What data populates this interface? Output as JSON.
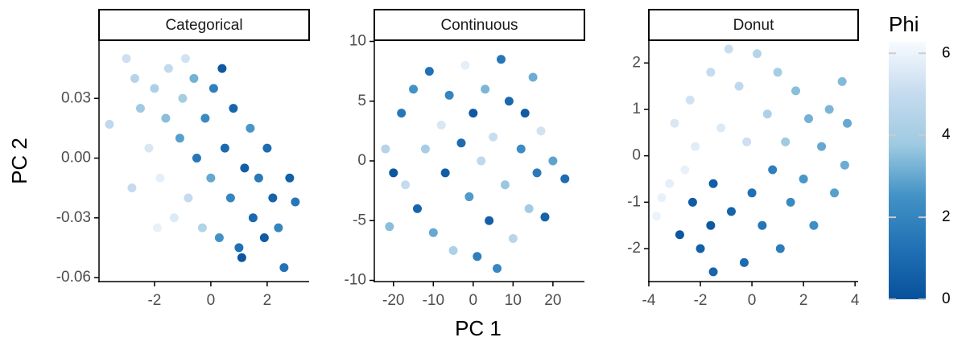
{
  "xlabel": "PC 1",
  "ylabel": "PC 2",
  "colorbar": {
    "title": "Phi",
    "lim": [
      0,
      6.28
    ],
    "ticks": [
      0,
      2,
      4,
      6
    ],
    "colors": [
      "#08519c",
      "#2171b5",
      "#4292c6",
      "#9ecae1",
      "#c6dbef",
      "#f7fbff"
    ]
  },
  "chart_data": [
    {
      "type": "scatter",
      "title": "Categorical",
      "x": [
        -3.6,
        -3.0,
        -2.7,
        -2.5,
        -2.2,
        -2.0,
        -1.8,
        -1.6,
        -1.5,
        -1.3,
        -1.1,
        -1.0,
        -0.8,
        -0.6,
        -0.5,
        -0.3,
        -0.2,
        0.0,
        0.1,
        0.3,
        0.5,
        0.7,
        0.8,
        1.0,
        1.2,
        1.4,
        1.5,
        1.7,
        1.9,
        2.0,
        2.2,
        2.4,
        2.6,
        2.8,
        3.0,
        -2.8,
        -0.9,
        0.4,
        1.1,
        -1.9
      ],
      "y": [
        0.017,
        0.05,
        0.04,
        0.025,
        0.005,
        0.035,
        -0.01,
        0.02,
        0.045,
        -0.03,
        0.01,
        0.03,
        -0.02,
        0.04,
        0.0,
        -0.035,
        0.02,
        -0.01,
        0.035,
        -0.04,
        0.005,
        -0.02,
        0.025,
        -0.045,
        -0.005,
        0.015,
        -0.03,
        -0.01,
        -0.04,
        0.005,
        -0.02,
        -0.035,
        -0.055,
        -0.01,
        -0.022,
        -0.015,
        0.05,
        0.045,
        -0.05,
        -0.035
      ],
      "phi": [
        4.8,
        5.2,
        4.5,
        3.8,
        5.5,
        4.2,
        5.8,
        3.5,
        4.9,
        5.6,
        2.8,
        4.0,
        5.0,
        3.2,
        1.5,
        4.4,
        2.2,
        3.0,
        1.8,
        2.5,
        1.0,
        2.0,
        0.8,
        1.2,
        0.5,
        2.6,
        0.9,
        1.6,
        0.4,
        1.1,
        0.7,
        2.0,
        1.3,
        0.6,
        1.5,
        5.0,
        5.3,
        0.3,
        0.2,
        5.9
      ],
      "xlim": [
        -3.97,
        3.49
      ],
      "ylim": [
        -0.062,
        0.0592
      ],
      "xticks": [
        -2,
        0,
        2
      ],
      "yticks": [
        -0.06,
        -0.03,
        {
          "value": 0,
          "label": "0.00"
        },
        0.03
      ]
    },
    {
      "type": "scatter",
      "title": "Continuous",
      "x": [
        -22,
        -21,
        -18,
        -17,
        -15,
        -14,
        -12,
        -11,
        -10,
        -8,
        -7,
        -6,
        -5,
        -3,
        -2,
        -1,
        0,
        1,
        2,
        3,
        4,
        5,
        6,
        7,
        8,
        9,
        10,
        12,
        13,
        14,
        16,
        17,
        18,
        20,
        23,
        -20,
        15
      ],
      "y": [
        1,
        -5.5,
        4,
        -2,
        6,
        -4,
        1,
        7.5,
        -6,
        3,
        -1,
        5.5,
        -7.5,
        1.5,
        8,
        -3,
        4,
        -8,
        0,
        6,
        -5,
        2,
        -9,
        8.5,
        -2,
        5,
        -6.5,
        1,
        4,
        -4,
        -1,
        2.5,
        -4.7,
        0,
        -1.5,
        -1,
        7
      ],
      "phi": [
        4.5,
        3.5,
        1.5,
        5.0,
        2.5,
        0.8,
        4.0,
        1.2,
        3.0,
        5.5,
        0.5,
        2.0,
        4.2,
        1.0,
        5.8,
        2.7,
        0.3,
        1.8,
        4.8,
        3.3,
        0.6,
        5.1,
        2.1,
        1.4,
        3.7,
        0.9,
        4.6,
        2.3,
        0.4,
        3.9,
        1.6,
        5.3,
        0.7,
        2.9,
        1.1,
        0.2,
        3.1
      ],
      "xlim": [
        -24.8,
        27.9
      ],
      "ylim": [
        -10.1,
        10.1
      ],
      "xticks": [
        -20,
        -10,
        0,
        10,
        20
      ],
      "yticks": [
        -10,
        -5,
        0,
        5,
        10
      ]
    },
    {
      "type": "scatter",
      "title": "Donut",
      "x": [
        -3.7,
        -3.2,
        -3.0,
        -2.6,
        -2.4,
        -2.2,
        -2.8,
        -2.3,
        -2.0,
        -1.6,
        -1.5,
        -1.6,
        -1.2,
        -1.5,
        -0.8,
        -0.5,
        -0.3,
        -0.2,
        0.0,
        0.2,
        0.4,
        0.6,
        0.8,
        1.0,
        1.1,
        1.3,
        1.5,
        1.7,
        2.0,
        2.2,
        2.4,
        2.7,
        3.0,
        3.2,
        3.5,
        3.6,
        3.7,
        -0.9,
        -3.5
      ],
      "y": [
        -1.3,
        -0.6,
        0.7,
        -0.3,
        1.2,
        0.2,
        -1.7,
        -1.0,
        -2.0,
        -1.5,
        -0.6,
        1.8,
        0.6,
        -2.5,
        -1.2,
        1.5,
        -2.3,
        0.3,
        -0.8,
        2.2,
        -1.5,
        0.9,
        -0.3,
        1.8,
        -2.0,
        0.3,
        -1.0,
        1.4,
        -0.5,
        0.8,
        -1.5,
        0.2,
        1.0,
        -0.8,
        1.6,
        -0.2,
        0.7,
        2.3,
        -0.9
      ],
      "phi": [
        6.0,
        5.8,
        5.5,
        5.9,
        5.3,
        5.7,
        0.2,
        0.4,
        0.6,
        0.3,
        0.5,
        5.0,
        5.6,
        0.8,
        0.7,
        4.8,
        1.0,
        5.2,
        1.2,
        4.5,
        1.4,
        4.3,
        1.8,
        4.0,
        1.7,
        3.8,
        2.2,
        3.5,
        2.6,
        3.2,
        2.4,
        3.0,
        3.3,
        2.8,
        3.4,
        3.1,
        3.0,
        5.1,
        5.9
      ],
      "xlim": [
        -4,
        4.12
      ],
      "ylim": [
        -2.71,
        2.49
      ],
      "xticks": [
        -4,
        -2,
        0,
        2,
        4
      ],
      "yticks": [
        -2,
        -1,
        0,
        1,
        2
      ]
    }
  ]
}
